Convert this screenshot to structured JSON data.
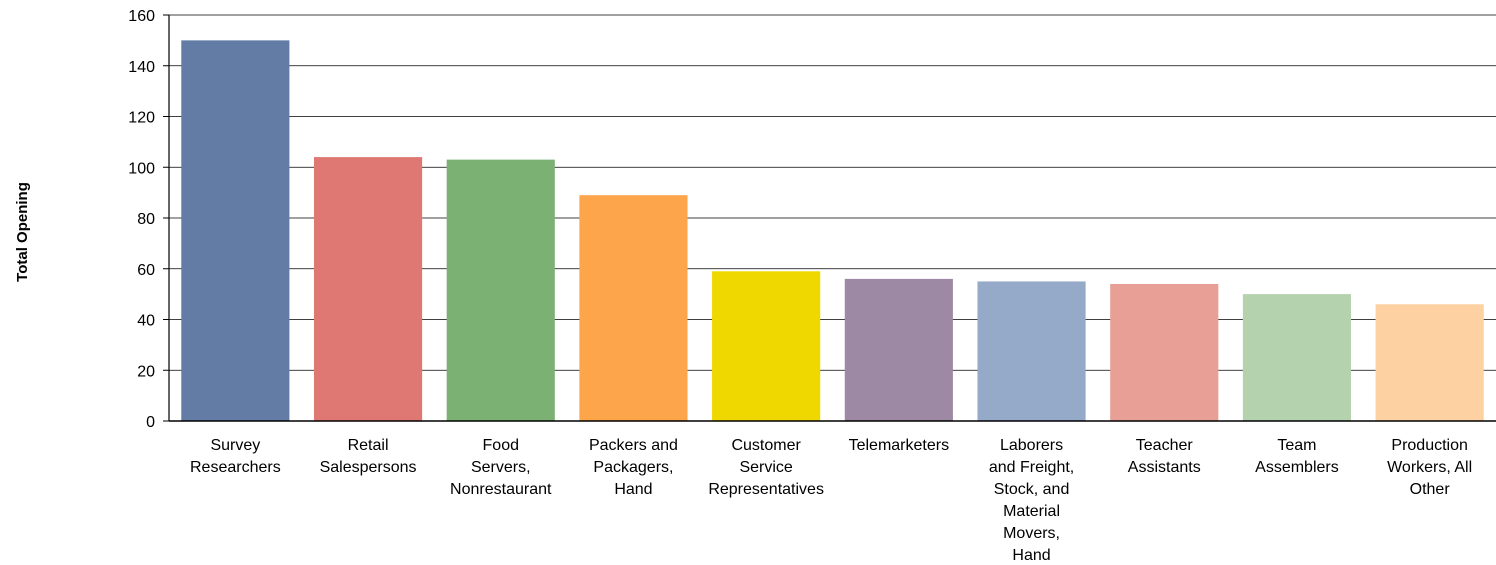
{
  "chart_data": {
    "type": "bar",
    "title": "",
    "xlabel": "",
    "ylabel": "Total Opening",
    "ylim": [
      0,
      160
    ],
    "yticks": [
      0,
      20,
      40,
      60,
      80,
      100,
      120,
      140,
      160
    ],
    "grid": true,
    "legend": "none",
    "categories": [
      [
        "Survey",
        "Researchers"
      ],
      [
        "Retail",
        "Salespersons"
      ],
      [
        "Food",
        "Servers,",
        "Nonrestaurant"
      ],
      [
        "Packers and",
        "Packagers,",
        "Hand"
      ],
      [
        "Customer",
        "Service",
        "Representatives"
      ],
      [
        "Telemarketers"
      ],
      [
        "Laborers",
        "and Freight,",
        "Stock, and",
        "Material",
        "Movers,",
        "Hand"
      ],
      [
        "Teacher",
        "Assistants"
      ],
      [
        "Team",
        "Assemblers"
      ],
      [
        "Production",
        "Workers, All",
        "Other"
      ]
    ],
    "values": [
      150,
      104,
      103,
      89,
      59,
      56,
      55,
      54,
      50,
      46
    ],
    "colors": [
      "#627ca5",
      "#df7872",
      "#7bb274",
      "#fca54b",
      "#eed800",
      "#9d89a3",
      "#95aac8",
      "#e79f96",
      "#b4d2ad",
      "#fdd1a1"
    ]
  }
}
